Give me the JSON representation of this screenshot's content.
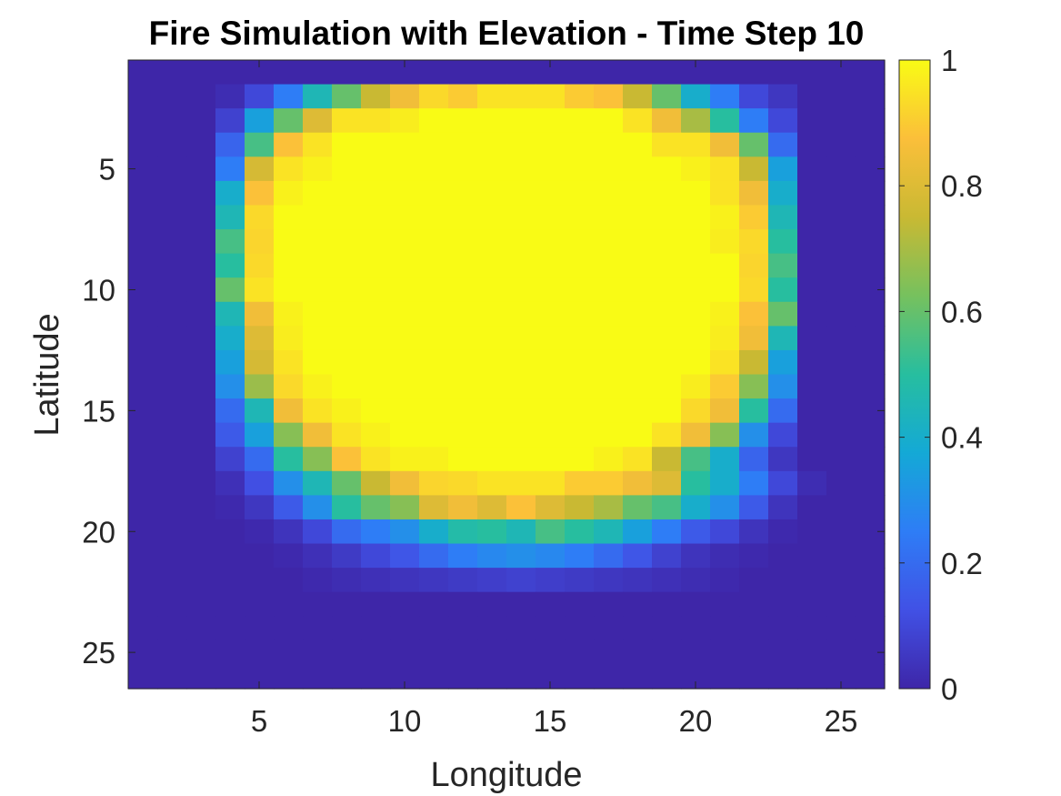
{
  "chart_data": {
    "type": "heatmap",
    "title": "Fire Simulation with Elevation - Time Step 10",
    "xlabel": "Longitude",
    "ylabel": "Latitude",
    "x_range": [
      1,
      26
    ],
    "y_range": [
      1,
      26
    ],
    "y_axis_direction": "reversed",
    "xticks": [
      5,
      10,
      15,
      20,
      25
    ],
    "yticks": [
      5,
      10,
      15,
      20,
      25
    ],
    "colormap": "parula",
    "colorbar": {
      "position": "right",
      "limits": [
        0,
        1
      ],
      "ticks": [
        0,
        0.2,
        0.4,
        0.6,
        0.8,
        1
      ],
      "tick_labels": [
        "0",
        "0.2",
        "0.4",
        "0.6",
        "0.8",
        "1"
      ]
    },
    "grid": false,
    "values": [
      [
        0,
        0,
        0,
        0,
        0,
        0,
        0,
        0,
        0,
        0,
        0,
        0,
        0,
        0,
        0,
        0,
        0,
        0,
        0,
        0,
        0,
        0,
        0,
        0,
        0,
        0
      ],
      [
        0,
        0,
        0,
        0.02,
        0.1,
        0.25,
        0.45,
        0.6,
        0.75,
        0.85,
        0.93,
        0.9,
        0.95,
        0.95,
        0.95,
        0.9,
        0.88,
        0.75,
        0.6,
        0.4,
        0.25,
        0.1,
        0.05,
        0,
        0,
        0
      ],
      [
        0,
        0,
        0,
        0.08,
        0.35,
        0.6,
        0.8,
        0.95,
        0.95,
        0.97,
        1,
        1,
        1,
        1,
        1,
        1,
        1,
        0.95,
        0.85,
        0.7,
        0.5,
        0.25,
        0.1,
        0,
        0,
        0
      ],
      [
        0,
        0,
        0,
        0.18,
        0.55,
        0.88,
        0.95,
        1,
        1,
        1,
        1,
        1,
        1,
        1,
        1,
        1,
        1,
        1,
        0.95,
        0.95,
        0.85,
        0.6,
        0.2,
        0,
        0,
        0
      ],
      [
        0,
        0,
        0,
        0.25,
        0.78,
        0.95,
        0.98,
        1,
        1,
        1,
        1,
        1,
        1,
        1,
        1,
        1,
        1,
        1,
        1,
        0.98,
        0.95,
        0.75,
        0.35,
        0,
        0,
        0
      ],
      [
        0,
        0,
        0,
        0.4,
        0.88,
        0.98,
        1,
        1,
        1,
        1,
        1,
        1,
        1,
        1,
        1,
        1,
        1,
        1,
        1,
        1,
        0.95,
        0.85,
        0.4,
        0,
        0,
        0
      ],
      [
        0,
        0,
        0,
        0.45,
        0.93,
        1,
        1,
        1,
        1,
        1,
        1,
        1,
        1,
        1,
        1,
        1,
        1,
        1,
        1,
        1,
        0.98,
        0.9,
        0.45,
        0,
        0,
        0
      ],
      [
        0,
        0,
        0,
        0.55,
        0.92,
        1,
        1,
        1,
        1,
        1,
        1,
        1,
        1,
        1,
        1,
        1,
        1,
        1,
        1,
        1,
        0.97,
        0.93,
        0.5,
        0,
        0,
        0
      ],
      [
        0,
        0,
        0,
        0.5,
        0.93,
        1,
        1,
        1,
        1,
        1,
        1,
        1,
        1,
        1,
        1,
        1,
        1,
        1,
        1,
        1,
        1,
        0.92,
        0.55,
        0,
        0,
        0
      ],
      [
        0,
        0,
        0,
        0.6,
        0.95,
        1,
        1,
        1,
        1,
        1,
        1,
        1,
        1,
        1,
        1,
        1,
        1,
        1,
        1,
        1,
        1,
        0.93,
        0.5,
        0,
        0,
        0
      ],
      [
        0,
        0,
        0,
        0.45,
        0.85,
        0.98,
        1,
        1,
        1,
        1,
        1,
        1,
        1,
        1,
        1,
        1,
        1,
        1,
        1,
        1,
        0.98,
        0.88,
        0.6,
        0,
        0,
        0
      ],
      [
        0,
        0,
        0,
        0.4,
        0.8,
        0.97,
        1,
        1,
        1,
        1,
        1,
        1,
        1,
        1,
        1,
        1,
        1,
        1,
        1,
        1,
        0.97,
        0.85,
        0.45,
        0,
        0,
        0
      ],
      [
        0,
        0,
        0,
        0.35,
        0.78,
        0.95,
        1,
        1,
        1,
        1,
        1,
        1,
        1,
        1,
        1,
        1,
        1,
        1,
        1,
        1,
        0.95,
        0.75,
        0.35,
        0,
        0,
        0
      ],
      [
        0,
        0,
        0,
        0.3,
        0.68,
        0.93,
        0.98,
        1,
        1,
        1,
        1,
        1,
        1,
        1,
        1,
        1,
        1,
        1,
        1,
        0.97,
        0.9,
        0.65,
        0.3,
        0,
        0,
        0
      ],
      [
        0,
        0,
        0,
        0.2,
        0.45,
        0.85,
        0.95,
        0.98,
        1,
        1,
        1,
        1,
        1,
        1,
        1,
        1,
        1,
        1,
        1,
        0.93,
        0.85,
        0.5,
        0.2,
        0,
        0,
        0
      ],
      [
        0,
        0,
        0,
        0.15,
        0.35,
        0.65,
        0.85,
        0.95,
        0.98,
        1,
        1,
        1,
        1,
        1,
        1,
        1,
        1,
        1,
        0.95,
        0.85,
        0.65,
        0.3,
        0.1,
        0,
        0,
        0
      ],
      [
        0,
        0,
        0,
        0.08,
        0.2,
        0.5,
        0.65,
        0.88,
        0.95,
        0.98,
        0.98,
        1,
        1,
        1,
        1,
        1,
        0.98,
        0.95,
        0.75,
        0.55,
        0.4,
        0.18,
        0.05,
        0,
        0,
        0
      ],
      [
        0,
        0,
        0,
        0.03,
        0.12,
        0.3,
        0.45,
        0.6,
        0.75,
        0.85,
        0.92,
        0.93,
        0.95,
        0.95,
        0.95,
        0.9,
        0.9,
        0.85,
        0.8,
        0.5,
        0.4,
        0.25,
        0.1,
        0.02,
        0,
        0
      ],
      [
        0,
        0,
        0,
        0.01,
        0.05,
        0.15,
        0.3,
        0.5,
        0.6,
        0.65,
        0.8,
        0.85,
        0.8,
        0.88,
        0.8,
        0.75,
        0.7,
        0.6,
        0.55,
        0.4,
        0.3,
        0.15,
        0.04,
        0,
        0,
        0
      ],
      [
        0,
        0,
        0,
        0,
        0.01,
        0.04,
        0.1,
        0.2,
        0.25,
        0.3,
        0.4,
        0.48,
        0.5,
        0.45,
        0.55,
        0.5,
        0.45,
        0.35,
        0.25,
        0.15,
        0.1,
        0.04,
        0.01,
        0,
        0,
        0
      ],
      [
        0,
        0,
        0,
        0,
        0,
        0.01,
        0.03,
        0.06,
        0.1,
        0.14,
        0.2,
        0.25,
        0.28,
        0.3,
        0.28,
        0.25,
        0.2,
        0.14,
        0.08,
        0.04,
        0.02,
        0.01,
        0,
        0,
        0,
        0
      ],
      [
        0,
        0,
        0,
        0,
        0,
        0,
        0.01,
        0.02,
        0.03,
        0.04,
        0.05,
        0.06,
        0.07,
        0.08,
        0.07,
        0.06,
        0.05,
        0.04,
        0.03,
        0.02,
        0.01,
        0,
        0,
        0,
        0,
        0
      ],
      [
        0,
        0,
        0,
        0,
        0,
        0,
        0,
        0,
        0,
        0,
        0,
        0,
        0,
        0,
        0,
        0,
        0,
        0,
        0,
        0,
        0,
        0,
        0,
        0,
        0,
        0
      ],
      [
        0,
        0,
        0,
        0,
        0,
        0,
        0,
        0,
        0,
        0,
        0,
        0,
        0,
        0,
        0,
        0,
        0,
        0,
        0,
        0,
        0,
        0,
        0,
        0,
        0,
        0
      ],
      [
        0,
        0,
        0,
        0,
        0,
        0,
        0,
        0,
        0,
        0,
        0,
        0,
        0,
        0,
        0,
        0,
        0,
        0,
        0,
        0,
        0,
        0,
        0,
        0,
        0,
        0
      ],
      [
        0,
        0,
        0,
        0,
        0,
        0,
        0,
        0,
        0,
        0,
        0,
        0,
        0,
        0,
        0,
        0,
        0,
        0,
        0,
        0,
        0,
        0,
        0,
        0,
        0,
        0
      ]
    ]
  },
  "colors": {
    "axis": "#262626",
    "background": "#ffffff",
    "parula_stops": [
      "#3e26a8",
      "#4151e5",
      "#2e7df6",
      "#14a9d6",
      "#27be9f",
      "#76c15e",
      "#c9b933",
      "#fbbf3a",
      "#f9fb15"
    ]
  }
}
